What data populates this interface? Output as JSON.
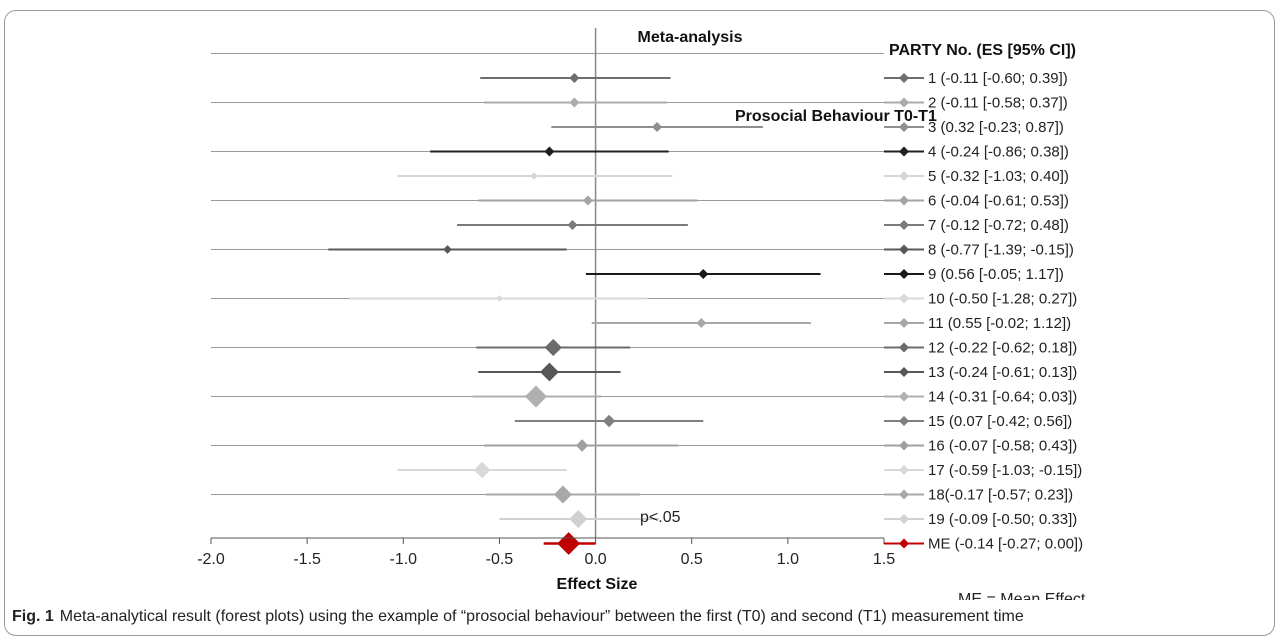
{
  "chart_data": {
    "type": "forest",
    "title": "Meta-analysis",
    "subtitle": "Prosocial Behaviour T0-T1",
    "xlabel": "Effect Size",
    "legend_title": "PARTY No. (ES [95% CI])",
    "xlim": [
      -2.0,
      1.5
    ],
    "x_ticks": [
      "-2.0",
      "-1.5",
      "-1.0",
      "-0.5",
      "0.0",
      "0.5",
      "1.0",
      "1.5"
    ],
    "x_tick_values": [
      -2.0,
      -1.5,
      -1.0,
      -0.5,
      0.0,
      0.5,
      1.0,
      1.5
    ],
    "studies": [
      {
        "label": "1 (-0.11 [-0.60; 0.39])",
        "es": -0.11,
        "lo": -0.6,
        "hi": 0.39,
        "color": "#6d6d6d",
        "weight": 1
      },
      {
        "label": "2 (-0.11 [-0.58; 0.37])",
        "es": -0.11,
        "lo": -0.58,
        "hi": 0.37,
        "color": "#ababab",
        "weight": 1
      },
      {
        "label": "3 (0.32 [-0.23; 0.87])",
        "es": 0.32,
        "lo": -0.23,
        "hi": 0.87,
        "color": "#8e8e8e",
        "weight": 1
      },
      {
        "label": "4 (-0.24 [-0.86; 0.38])",
        "es": -0.24,
        "lo": -0.86,
        "hi": 0.38,
        "color": "#1f1f1f",
        "weight": 1
      },
      {
        "label": "5 (-0.32 [-1.03; 0.40])",
        "es": -0.32,
        "lo": -1.03,
        "hi": 0.4,
        "color": "#d6d6d6",
        "weight": 0.7
      },
      {
        "label": "6 (-0.04 [-0.61; 0.53])",
        "es": -0.04,
        "lo": -0.61,
        "hi": 0.53,
        "color": "#a3a3a3",
        "weight": 1
      },
      {
        "label": "7 (-0.12 [-0.72; 0.48])",
        "es": -0.12,
        "lo": -0.72,
        "hi": 0.48,
        "color": "#7a7a7a",
        "weight": 1
      },
      {
        "label": "8 (-0.77 [-1.39; -0.15])",
        "es": -0.77,
        "lo": -1.39,
        "hi": -0.15,
        "color": "#595959",
        "weight": 0.85
      },
      {
        "label": "9 (0.56 [-0.05; 1.17])",
        "es": 0.56,
        "lo": -0.05,
        "hi": 1.17,
        "color": "#1a1a1a",
        "weight": 1
      },
      {
        "label": "10 (-0.50 [-1.28; 0.27])",
        "es": -0.5,
        "lo": -1.28,
        "hi": 0.27,
        "color": "#d9d9d9",
        "weight": 0.6
      },
      {
        "label": "11 (0.55 [-0.02; 1.12])",
        "es": 0.55,
        "lo": -0.02,
        "hi": 1.12,
        "color": "#a8a8a8",
        "weight": 1
      },
      {
        "label": "12 (-0.22 [-0.62; 0.18])",
        "es": -0.22,
        "lo": -0.62,
        "hi": 0.18,
        "color": "#6b6b6b",
        "weight": 1.9
      },
      {
        "label": "13 (-0.24 [-0.61; 0.13])",
        "es": -0.24,
        "lo": -0.61,
        "hi": 0.13,
        "color": "#575757",
        "weight": 2.1
      },
      {
        "label": "14 (-0.31 [-0.64; 0.03])",
        "es": -0.31,
        "lo": -0.64,
        "hi": 0.03,
        "color": "#b0b0b0",
        "weight": 2.5
      },
      {
        "label": "15 (0.07 [-0.42; 0.56])",
        "es": 0.07,
        "lo": -0.42,
        "hi": 0.56,
        "color": "#7f7f7f",
        "weight": 1.3
      },
      {
        "label": "16 (-0.07 [-0.58; 0.43])",
        "es": -0.07,
        "lo": -0.58,
        "hi": 0.43,
        "color": "#a0a0a0",
        "weight": 1.3
      },
      {
        "label": "17 (-0.59 [-1.03; -0.15])",
        "es": -0.59,
        "lo": -1.03,
        "hi": -0.15,
        "color": "#d9d9d9",
        "weight": 1.8
      },
      {
        "label": "18(-0.17 [-0.57; 0.23])",
        "es": -0.17,
        "lo": -0.57,
        "hi": 0.23,
        "color": "#a8a8a8",
        "weight": 2.0
      },
      {
        "label": "19 (-0.09 [-0.50; 0.33])",
        "es": -0.09,
        "lo": -0.5,
        "hi": 0.33,
        "color": "#d1d1d1",
        "weight": 2.0
      },
      {
        "label": "ME (-0.14 [-0.27; 0.00])",
        "es": -0.14,
        "lo": -0.27,
        "hi": 0.0,
        "color": "#c00000",
        "weight": 2.6
      }
    ],
    "annotation": "p<.05",
    "footnote": "ME = Mean Effect",
    "grid": "horizontal lines every second row",
    "legend_position": "right"
  },
  "caption": {
    "label": "Fig. 1",
    "text": "Meta-analytical result (forest plots) using the example of “prosocial behaviour” between the first (T0) and second (T1) measurement time"
  }
}
